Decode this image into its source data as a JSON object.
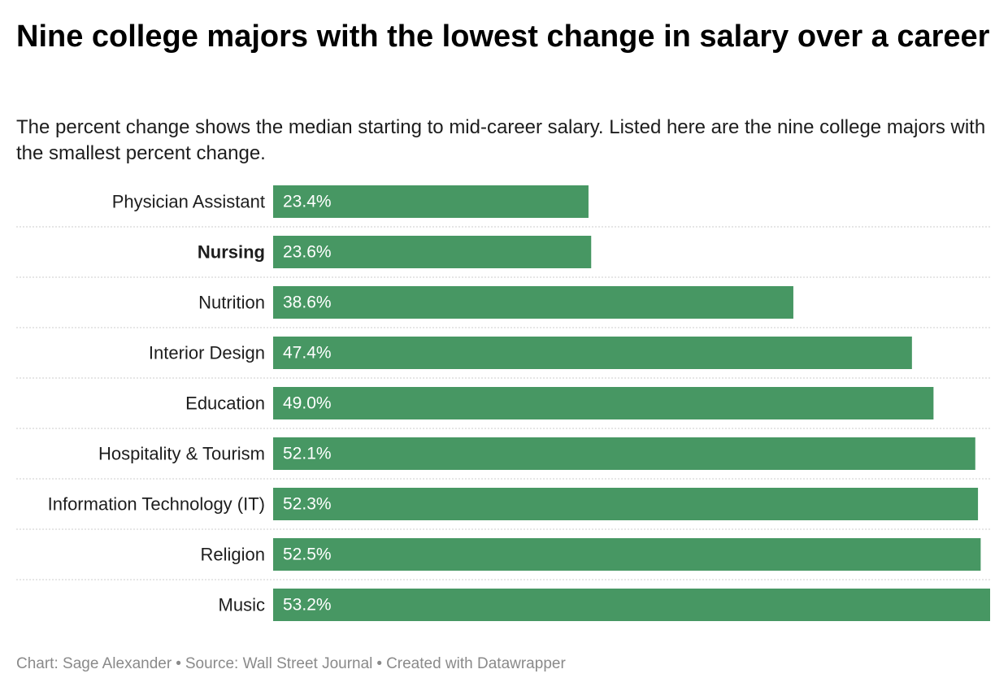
{
  "title": "Nine college majors with the lowest change in salary over a career",
  "subtitle": "The percent change shows the median starting to mid-career salary. Listed here are the nine college majors with the smallest percent change.",
  "footer": {
    "chart_credit": "Chart: Sage Alexander",
    "source": "Source: Wall Street Journal",
    "created_with": "Created with Datawrapper",
    "separator": "•"
  },
  "colors": {
    "bar": "#479763",
    "bar_label": "#ffffff",
    "divider": "#cccccc",
    "footer_text": "#8a8a8a"
  },
  "chart_data": {
    "type": "bar",
    "orientation": "horizontal",
    "categories": [
      "Physician Assistant",
      "Nursing",
      "Nutrition",
      "Interior Design",
      "Education",
      "Hospitality & Tourism",
      "Information Technology (IT)",
      "Religion",
      "Music"
    ],
    "values": [
      23.4,
      23.6,
      38.6,
      47.4,
      49.0,
      52.1,
      52.3,
      52.5,
      53.2
    ],
    "value_labels": [
      "23.4%",
      "23.6%",
      "38.6%",
      "47.4%",
      "49.0%",
      "52.1%",
      "52.3%",
      "52.5%",
      "53.2%"
    ],
    "highlighted_category": "Nursing",
    "unit": "%",
    "xlim": [
      0,
      53.2
    ],
    "grid": false,
    "title": "",
    "xlabel": "",
    "ylabel": ""
  }
}
